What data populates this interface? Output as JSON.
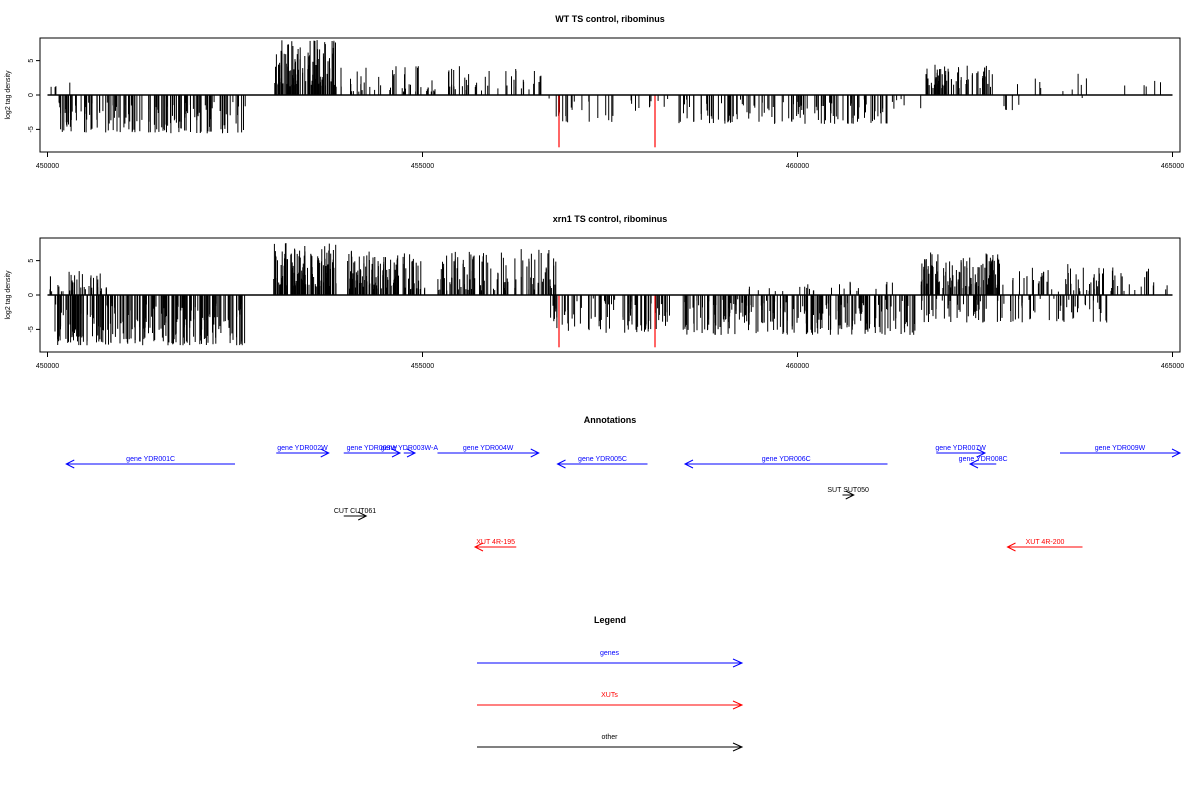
{
  "chart_data": [
    {
      "type": "bar",
      "title": "WT TS control, ribominus",
      "ylabel": "log2 tag density",
      "xlim": [
        449900,
        465100
      ],
      "ylim": [
        -8,
        8
      ],
      "x_ticks": [
        450000,
        455000,
        460000,
        465000
      ],
      "x_tick_labels": [
        "450000",
        "455000",
        "460000",
        "465000"
      ],
      "y_ticks": [
        -5,
        0,
        5
      ],
      "y_tick_labels": [
        "-5",
        "0",
        "5"
      ],
      "baseline": {
        "from": 450000,
        "to": 465000,
        "y": 0
      },
      "highlight_color": "#ff0000",
      "bar_color": "#000000",
      "highlights": [
        {
          "x": 456820,
          "y": -7.6
        },
        {
          "x": 458100,
          "y": -7.6
        }
      ],
      "regions": [
        {
          "from": 450040,
          "to": 450120,
          "count": 3,
          "min": 1.0,
          "max": 2.5,
          "seed": 11
        },
        {
          "from": 450290,
          "to": 450300,
          "count": 1,
          "min": 1.8,
          "max": 1.8,
          "seed": 12
        },
        {
          "from": 450150,
          "to": 452650,
          "count": 150,
          "min": -5.6,
          "max": -1.0,
          "seed": 13
        },
        {
          "from": 453030,
          "to": 453850,
          "count": 110,
          "min": 1.2,
          "max": 8.0,
          "seed": 14
        },
        {
          "from": 453900,
          "to": 455200,
          "count": 45,
          "min": 0.5,
          "max": 4.2,
          "seed": 15
        },
        {
          "from": 455250,
          "to": 456600,
          "count": 40,
          "min": 0.6,
          "max": 4.4,
          "seed": 16
        },
        {
          "from": 456650,
          "to": 457600,
          "count": 20,
          "min": -4.0,
          "max": -0.5,
          "seed": 17
        },
        {
          "from": 457650,
          "to": 458300,
          "count": 10,
          "min": -2.5,
          "max": -0.5,
          "seed": 18
        },
        {
          "from": 458400,
          "to": 461200,
          "count": 120,
          "min": -4.2,
          "max": -0.6,
          "seed": 19
        },
        {
          "from": 461250,
          "to": 461650,
          "count": 6,
          "min": -2.0,
          "max": -0.5,
          "seed": 20
        },
        {
          "from": 461700,
          "to": 462600,
          "count": 70,
          "min": 1.0,
          "max": 4.4,
          "seed": 21
        },
        {
          "from": 462750,
          "to": 463000,
          "count": 8,
          "min": -2.2,
          "max": 1.6,
          "seed": 22
        },
        {
          "from": 463150,
          "to": 463900,
          "count": 10,
          "min": -1.6,
          "max": 3.5,
          "seed": 23
        },
        {
          "from": 464300,
          "to": 464900,
          "count": 5,
          "min": 1.2,
          "max": 2.8,
          "seed": 24
        }
      ]
    },
    {
      "type": "bar",
      "title": "xrn1 TS control, ribominus",
      "ylabel": "log2 tag density",
      "xlim": [
        449900,
        465100
      ],
      "ylim": [
        -8,
        8
      ],
      "x_ticks": [
        450000,
        455000,
        460000,
        465000
      ],
      "x_tick_labels": [
        "450000",
        "455000",
        "460000",
        "465000"
      ],
      "y_ticks": [
        -5,
        0,
        5
      ],
      "y_tick_labels": [
        "-5",
        "0",
        "5"
      ],
      "baseline": {
        "from": 450000,
        "to": 465000,
        "y": 0
      },
      "highlight_color": "#ff0000",
      "bar_color": "#000000",
      "highlights": [
        {
          "x": 456820,
          "y": -7.6
        },
        {
          "x": 458100,
          "y": -7.6
        }
      ],
      "regions": [
        {
          "from": 450020,
          "to": 450800,
          "count": 40,
          "min": 0.5,
          "max": 3.6,
          "seed": 31
        },
        {
          "from": 450100,
          "to": 452650,
          "count": 230,
          "min": -7.3,
          "max": -1.2,
          "seed": 32
        },
        {
          "from": 453000,
          "to": 453850,
          "count": 130,
          "min": 1.2,
          "max": 7.8,
          "seed": 33
        },
        {
          "from": 454000,
          "to": 455050,
          "count": 110,
          "min": 0.8,
          "max": 6.5,
          "seed": 34
        },
        {
          "from": 455200,
          "to": 456800,
          "count": 110,
          "min": 0.6,
          "max": 6.8,
          "seed": 35
        },
        {
          "from": 456650,
          "to": 458300,
          "count": 90,
          "min": -5.5,
          "max": -0.5,
          "seed": 36
        },
        {
          "from": 458400,
          "to": 461600,
          "count": 220,
          "min": -5.8,
          "max": -0.6,
          "seed": 37
        },
        {
          "from": 459000,
          "to": 461400,
          "count": 25,
          "min": 0.5,
          "max": 2.0,
          "seed": 38
        },
        {
          "from": 461650,
          "to": 462700,
          "count": 120,
          "min": 1.0,
          "max": 6.2,
          "seed": 39
        },
        {
          "from": 461650,
          "to": 464200,
          "count": 90,
          "min": -4.0,
          "max": -0.5,
          "seed": 40
        },
        {
          "from": 462700,
          "to": 464950,
          "count": 70,
          "min": 0.5,
          "max": 4.5,
          "seed": 41
        }
      ]
    }
  ],
  "annotations": {
    "title": "Annotations",
    "items": [
      {
        "label": "gene YDR001C",
        "direction": "left",
        "row": 1,
        "color": "#0000ff",
        "from": 450250,
        "to": 452500
      },
      {
        "label": "gene YDR002W",
        "direction": "right",
        "row": 0,
        "color": "#0000ff",
        "from": 453050,
        "to": 453750
      },
      {
        "label": "gene YDR003W",
        "direction": "right",
        "row": 0,
        "color": "#0000ff",
        "from": 453950,
        "to": 454700
      },
      {
        "label": "gene YDR003W-A",
        "direction": "right",
        "row": 0,
        "color": "#0000ff",
        "from": 454750,
        "to": 454900
      },
      {
        "label": "gene YDR004W",
        "direction": "right",
        "row": 0,
        "color": "#0000ff",
        "from": 455200,
        "to": 456550
      },
      {
        "label": "gene YDR005C",
        "direction": "left",
        "row": 1,
        "color": "#0000ff",
        "from": 456800,
        "to": 458000
      },
      {
        "label": "gene YDR006C",
        "direction": "left",
        "row": 1,
        "color": "#0000ff",
        "from": 458500,
        "to": 461200
      },
      {
        "label": "gene YDR007W",
        "direction": "right",
        "row": 0,
        "color": "#0000ff",
        "from": 461850,
        "to": 462500
      },
      {
        "label": "gene YDR008C",
        "direction": "left",
        "row": 1,
        "color": "#0000ff",
        "from": 462300,
        "to": 462650
      },
      {
        "label": "gene YDR009W",
        "direction": "right",
        "row": 0,
        "color": "#0000ff",
        "from": 463500,
        "to": 465100
      },
      {
        "label": "SUT SUT050",
        "direction": "right",
        "row": 2,
        "color": "#000000",
        "from": 460600,
        "to": 460750
      },
      {
        "label": "CUT CUT061",
        "direction": "right",
        "row": 3,
        "color": "#000000",
        "from": 453950,
        "to": 454250
      },
      {
        "label": "XUT 4R-195",
        "direction": "left",
        "row": 4,
        "color": "#ff0000",
        "from": 455700,
        "to": 456250
      },
      {
        "label": "XUT 4R-200",
        "direction": "left",
        "row": 4,
        "color": "#ff0000",
        "from": 462800,
        "to": 463800
      }
    ]
  },
  "legend": {
    "title": "Legend",
    "items": [
      {
        "label": "genes",
        "color": "#0000ff"
      },
      {
        "label": "XUTs",
        "color": "#ff0000"
      },
      {
        "label": "other",
        "color": "#000000"
      }
    ]
  }
}
